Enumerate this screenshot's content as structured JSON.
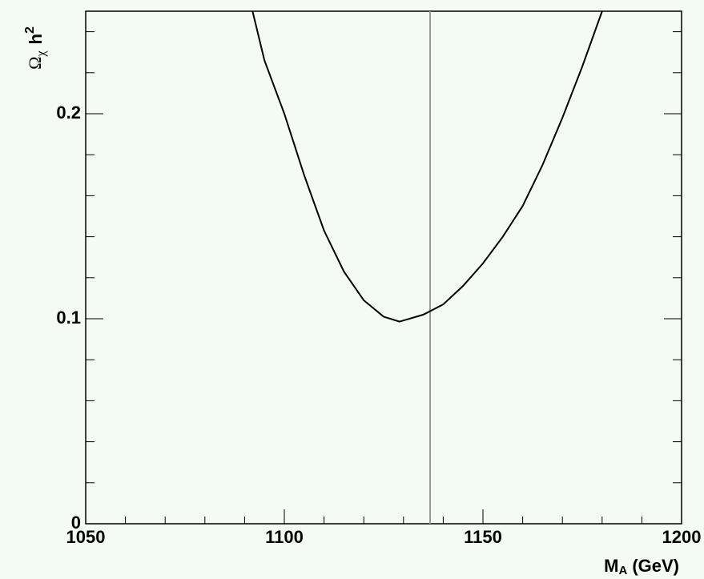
{
  "chart_data": {
    "type": "line",
    "x_label": {
      "symbol": "M",
      "subscript": "A",
      "unit": "(GeV)"
    },
    "y_label": {
      "symbol": "Ω",
      "subscript": "χ",
      "text": "h",
      "superscript": "2"
    },
    "x": [
      1092,
      1095,
      1100,
      1105,
      1110,
      1115,
      1120,
      1125,
      1129,
      1135,
      1140,
      1145,
      1150,
      1155,
      1160,
      1165,
      1170,
      1175,
      1180
    ],
    "series": [
      {
        "color": "#000000",
        "values": [
          0.25,
          0.226,
          0.2,
          0.17,
          0.143,
          0.123,
          0.109,
          0.101,
          0.0986,
          0.102,
          0.107,
          0.116,
          0.127,
          0.14,
          0.155,
          0.175,
          0.198,
          0.223,
          0.25
        ]
      }
    ],
    "vline": {
      "x": 1136.7,
      "color": "#999999"
    },
    "xlim": [
      1050,
      1200
    ],
    "xticks": [
      1050,
      1100,
      1150,
      1200
    ],
    "xminorticks": [
      1060,
      1070,
      1080,
      1090,
      1110,
      1120,
      1130,
      1140,
      1160,
      1170,
      1180,
      1190
    ],
    "ylim": [
      0,
      0.25
    ],
    "yticks": [
      0,
      0.1,
      0.2
    ],
    "yminorticks": [
      0.02,
      0.04,
      0.06,
      0.08,
      0.12,
      0.14,
      0.16,
      0.18,
      0.22,
      0.24
    ],
    "grid": false
  }
}
